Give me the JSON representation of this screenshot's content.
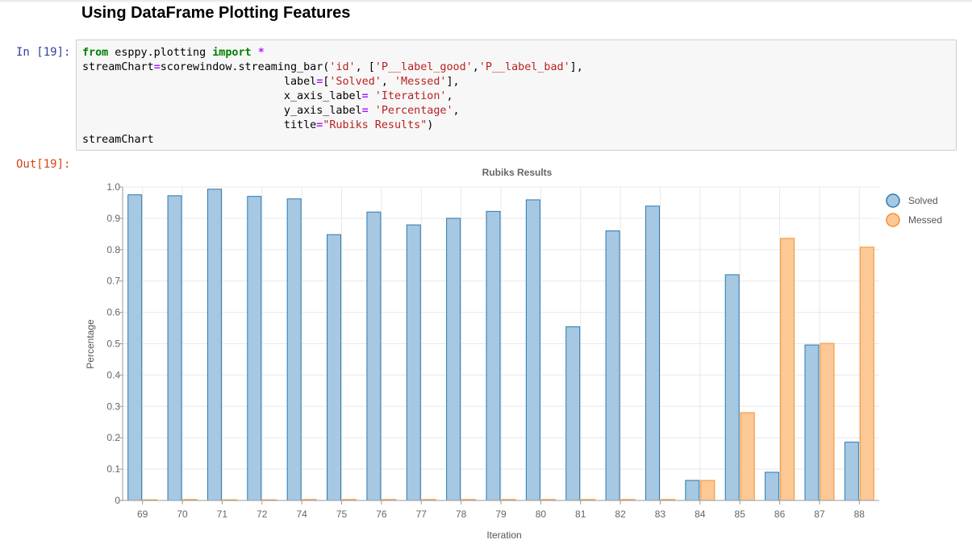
{
  "notebook": {
    "heading": "Using DataFrame Plotting Features",
    "in_prompt": "In [19]:",
    "out_prompt": "Out[19]:",
    "code_lines": [
      [
        {
          "t": "from",
          "c": "kw"
        },
        {
          "t": " esppy.plotting ",
          "c": ""
        },
        {
          "t": "import",
          "c": "kw"
        },
        {
          "t": " ",
          "c": ""
        },
        {
          "t": "*",
          "c": "op"
        }
      ],
      [
        {
          "t": "streamChart",
          "c": ""
        },
        {
          "t": "=",
          "c": "op"
        },
        {
          "t": "scorewindow.streaming_bar(",
          "c": ""
        },
        {
          "t": "'id'",
          "c": "st"
        },
        {
          "t": ", [",
          "c": ""
        },
        {
          "t": "'P__label_good'",
          "c": "st"
        },
        {
          "t": ",",
          "c": ""
        },
        {
          "t": "'P__label_bad'",
          "c": "st"
        },
        {
          "t": "],",
          "c": ""
        }
      ],
      [
        {
          "t": "                               label",
          "c": ""
        },
        {
          "t": "=",
          "c": "op"
        },
        {
          "t": "[",
          "c": ""
        },
        {
          "t": "'Solved'",
          "c": "st"
        },
        {
          "t": ", ",
          "c": ""
        },
        {
          "t": "'Messed'",
          "c": "st"
        },
        {
          "t": "],",
          "c": ""
        }
      ],
      [
        {
          "t": "                               x_axis_label",
          "c": ""
        },
        {
          "t": "=",
          "c": "op"
        },
        {
          "t": " ",
          "c": ""
        },
        {
          "t": "'Iteration'",
          "c": "st"
        },
        {
          "t": ",",
          "c": ""
        }
      ],
      [
        {
          "t": "                               y_axis_label",
          "c": ""
        },
        {
          "t": "=",
          "c": "op"
        },
        {
          "t": " ",
          "c": ""
        },
        {
          "t": "'Percentage'",
          "c": "st"
        },
        {
          "t": ",",
          "c": ""
        }
      ],
      [
        {
          "t": "                               title",
          "c": ""
        },
        {
          "t": "=",
          "c": "op"
        },
        {
          "t": "\"Rubiks Results\"",
          "c": "st"
        },
        {
          "t": ")",
          "c": ""
        }
      ],
      [
        {
          "t": "streamChart",
          "c": ""
        }
      ]
    ]
  },
  "chart_data": {
    "type": "bar",
    "title": "Rubiks Results",
    "xlabel": "Iteration",
    "ylabel": "Percentage",
    "ylim": [
      0,
      1.0
    ],
    "yticks": [
      "0",
      "0.1",
      "0.2",
      "0.3",
      "0.4",
      "0.5",
      "0.6",
      "0.7",
      "0.8",
      "0.9",
      "1.0"
    ],
    "grid": true,
    "legend_position": "top-right",
    "categories": [
      "69",
      "70",
      "71",
      "72",
      "74",
      "75",
      "76",
      "77",
      "78",
      "79",
      "80",
      "81",
      "82",
      "83",
      "84",
      "85",
      "86",
      "87",
      "88"
    ],
    "series": [
      {
        "name": "Solved",
        "color": "#a6c8e2",
        "stroke": "#2b79b0",
        "values": [
          0.975,
          0.972,
          0.993,
          0.97,
          0.962,
          0.848,
          0.92,
          0.879,
          0.9,
          0.922,
          0.959,
          0.554,
          0.86,
          0.939,
          0.064,
          0.72,
          0.09,
          0.496,
          0.186
        ]
      },
      {
        "name": "Messed",
        "color": "#fbc896",
        "stroke": "#f5922f",
        "values": [
          0,
          0.003,
          0,
          0,
          0.003,
          0.003,
          0.003,
          0.003,
          0.003,
          0.003,
          0.003,
          0.003,
          0.003,
          0.003,
          0.064,
          0.28,
          0.836,
          0.501,
          0.808
        ]
      }
    ]
  }
}
